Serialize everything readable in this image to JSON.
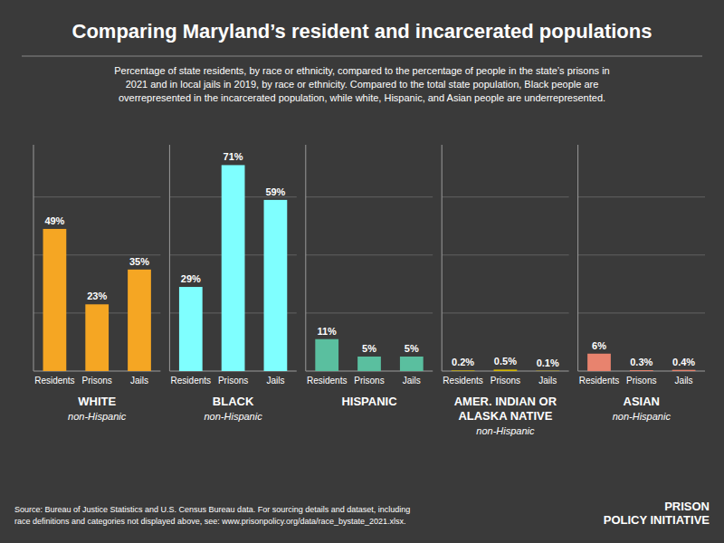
{
  "title": "Comparing Maryland’s resident and incarcerated populations",
  "subtitle": "Percentage of state residents, by race or ethnicity, compared to the percentage of people in the state’s prisons in\n2021 and in local jails in 2019, by race or ethnicity. Compared to the total state population, Black people are\noverrepresented in the incarcerated population, while white, Hispanic, and Asian people are underrepresented.",
  "annotations": [
    "Source: Bureau of Justice Statistics and U.S. Census Bureau data. For sourcing details and dataset, including\nrace definitions and categories not displayed above, see: www.prisonpolicy.org/data/race_bystate_2021.xlsx.",
    "PRISON\nPOLICY INITIATIVE"
  ],
  "chart_data": [
    {
      "type": "bar",
      "title": "WHITE",
      "subtitle": "non-Hispanic",
      "categories": [
        "Residents",
        "Prisons",
        "Jails"
      ],
      "values": [
        49,
        23,
        35
      ],
      "value_labels": [
        "49%",
        "23%",
        "35%"
      ],
      "color": "#f5a623",
      "ylim": [
        0,
        78
      ],
      "yticks": [
        20,
        40,
        60
      ],
      "grid": true,
      "data_labels": true,
      "tick_labels": "x"
    },
    {
      "type": "bar",
      "title": "BLACK",
      "subtitle": "non-Hispanic",
      "categories": [
        "Residents",
        "Prisons",
        "Jails"
      ],
      "values": [
        29,
        71,
        59
      ],
      "value_labels": [
        "29%",
        "71%",
        "59%"
      ],
      "color": "#7fffff",
      "ylim": [
        0,
        78
      ],
      "yticks": [
        20,
        40,
        60
      ],
      "grid": true,
      "data_labels": true,
      "tick_labels": "x"
    },
    {
      "type": "bar",
      "title": "HISPANIC",
      "categories": [
        "Residents",
        "Prisons",
        "Jails"
      ],
      "values": [
        11,
        5,
        5
      ],
      "value_labels": [
        "11%",
        "5%",
        "5%"
      ],
      "color": "#5abf9f",
      "ylim": [
        0,
        78
      ],
      "yticks": [
        20,
        40,
        60
      ],
      "grid": true,
      "data_labels": true,
      "tick_labels": "x"
    },
    {
      "type": "bar",
      "title": "AMER. INDIAN OR\nALASKA NATIVE",
      "subtitle": "non-Hispanic",
      "categories": [
        "Residents",
        "Prisons",
        "Jails"
      ],
      "values": [
        0.2,
        0.5,
        0.1
      ],
      "value_labels": [
        "0.2%",
        "0.5%",
        "0.1%"
      ],
      "color": "#d4b800",
      "ylim": [
        0,
        78
      ],
      "yticks": [
        20,
        40,
        60
      ],
      "grid": true,
      "data_labels": true,
      "tick_labels": "x"
    },
    {
      "type": "bar",
      "title": "ASIAN",
      "subtitle": "non-Hispanic",
      "categories": [
        "Residents",
        "Prisons",
        "Jails"
      ],
      "values": [
        6,
        0.3,
        0.4
      ],
      "value_labels": [
        "6%",
        "0.3%",
        "0.4%"
      ],
      "color": "#e8836e",
      "ylim": [
        0,
        78
      ],
      "yticks": [
        20,
        40,
        60
      ],
      "grid": true,
      "data_labels": true,
      "tick_labels": "x"
    }
  ]
}
